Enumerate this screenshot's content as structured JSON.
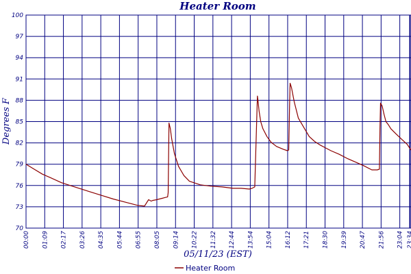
{
  "chart_data": {
    "type": "line",
    "title": "Heater Room",
    "xlabel": "05/11/23 (EST)",
    "ylabel": "Degrees F",
    "yticks": [
      "70",
      "73",
      "76",
      "79",
      "82",
      "85",
      "88",
      "91",
      "94",
      "97",
      "100"
    ],
    "ylim": [
      70,
      100
    ],
    "xticks": [
      "00:00",
      "01:09",
      "02:17",
      "03:26",
      "04:35",
      "05:44",
      "06:55",
      "08:05",
      "09:14",
      "10:22",
      "11:32",
      "12:44",
      "13:54",
      "15:04",
      "16:12",
      "17:21",
      "18:30",
      "19:39",
      "20:47",
      "21:56",
      "23:04",
      "23:34"
    ],
    "xlim": [
      0,
      1414
    ],
    "grid": true,
    "legend_position": "bottom",
    "colors": {
      "grid": "#000080",
      "series": "#8b0000",
      "text": "#000080"
    },
    "series": [
      {
        "name": "Heater Room",
        "x": [
          0,
          30,
          60,
          90,
          130,
          170,
          220,
          270,
          320,
          370,
          410,
          435,
          450,
          460,
          465,
          480,
          500,
          510,
          520,
          522,
          525,
          530,
          535,
          545,
          560,
          580,
          600,
          640,
          680,
          720,
          760,
          790,
          820,
          830,
          840,
          848,
          850,
          852,
          856,
          862,
          870,
          885,
          900,
          920,
          945,
          960,
          965,
          968,
          970,
          975,
          985,
          1000,
          1020,
          1040,
          1060,
          1080,
          1100,
          1120,
          1150,
          1180,
          1210,
          1240,
          1270,
          1290,
          1298,
          1300,
          1302,
          1308,
          1315,
          1322,
          1330,
          1340,
          1358,
          1380,
          1400,
          1414
        ],
        "y": [
          79.0,
          78.3,
          77.6,
          77.1,
          76.4,
          75.9,
          75.3,
          74.7,
          74.1,
          73.6,
          73.2,
          73.1,
          74.0,
          73.8,
          73.9,
          74.0,
          74.2,
          74.3,
          74.4,
          75.0,
          84.8,
          84.0,
          82.6,
          80.5,
          78.7,
          77.4,
          76.6,
          76.1,
          75.9,
          75.8,
          75.6,
          75.6,
          75.5,
          75.6,
          75.8,
          86.0,
          88.6,
          88.0,
          86.5,
          85.0,
          84.0,
          82.9,
          82.1,
          81.5,
          81.1,
          80.9,
          81.0,
          87.0,
          90.4,
          89.8,
          87.8,
          85.5,
          84.2,
          82.9,
          82.2,
          81.7,
          81.3,
          80.9,
          80.4,
          79.8,
          79.3,
          78.8,
          78.2,
          78.2,
          78.3,
          84.0,
          87.6,
          87.2,
          86.0,
          85.0,
          84.6,
          84.0,
          83.3,
          82.5,
          81.8,
          81.0
        ]
      }
    ]
  }
}
